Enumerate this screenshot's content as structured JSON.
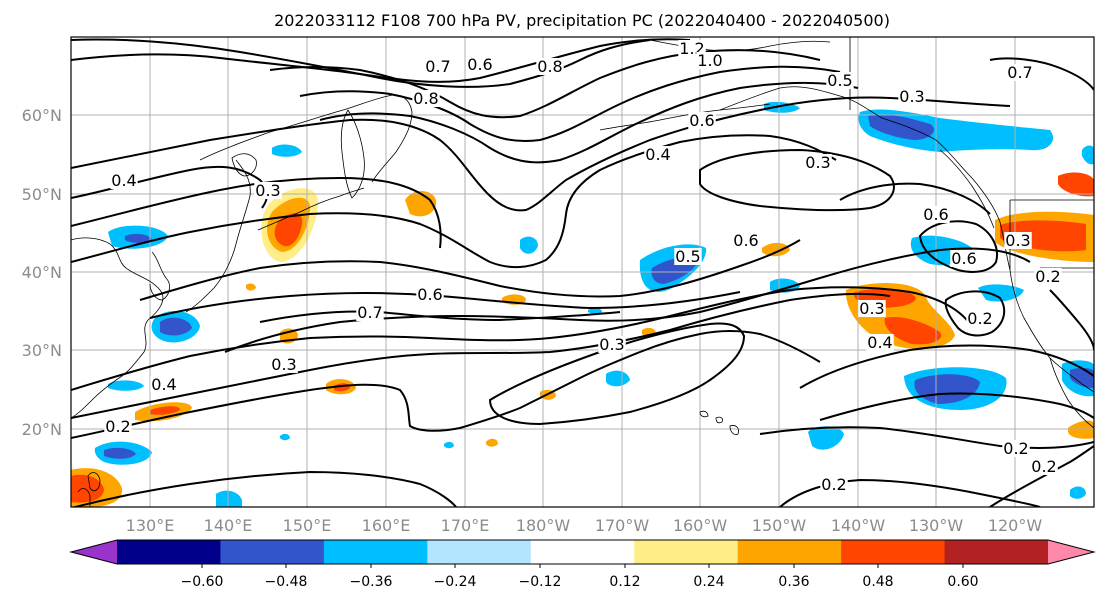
{
  "title": "2022033112 F108 700 hPa PV, precipitation PC (2022040400 - 2022040500)",
  "map": {
    "projection": "PlateCarree",
    "lon_range": [
      120,
      250
    ],
    "lat_range": [
      10,
      70
    ],
    "gridlines": true,
    "lon_labels": [
      "130°E",
      "140°E",
      "150°E",
      "160°E",
      "170°E",
      "180°W",
      "170°W",
      "160°W",
      "150°W",
      "140°W",
      "130°W",
      "120°W"
    ],
    "lat_labels": [
      "60°N",
      "50°N",
      "40°N",
      "30°N",
      "20°N"
    ]
  },
  "colorbar": {
    "orientation": "horizontal",
    "extend": "both",
    "tick_labels": [
      "−0.60",
      "−0.48",
      "−0.36",
      "−0.24",
      "−0.12",
      "0.12",
      "0.24",
      "0.36",
      "0.48",
      "0.60"
    ],
    "colors": [
      "#9933cc",
      "#00008b",
      "#3355cc",
      "#00bfff",
      "#b3e5ff",
      "#ffffff",
      "#ffee88",
      "#ffa500",
      "#ff4500",
      "#b22222",
      "#ff88aa"
    ]
  },
  "contour_labels": [
    "0.7",
    "0.6",
    "0.8",
    "1.2",
    "1.0",
    "0.5",
    "0.8",
    "0.3",
    "0.6",
    "0.4",
    "0.4",
    "0.3",
    "0.3",
    "0.6",
    "0.6",
    "0.5",
    "0.6",
    "0.7",
    "0.6",
    "0.3",
    "0.3",
    "0.4",
    "0.3",
    "0.4",
    "0.2",
    "0.3",
    "0.2",
    "0.2",
    "0.2",
    "0.2",
    "0.7",
    "0.2"
  ]
}
